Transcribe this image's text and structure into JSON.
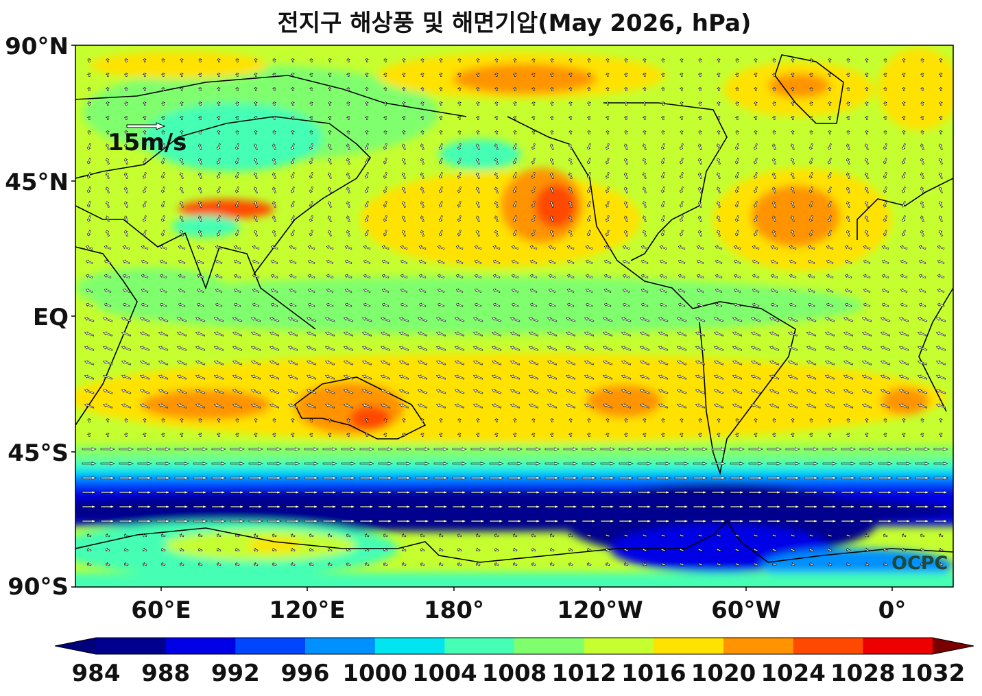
{
  "title": "전지구 해상풍 및 해면기압(May 2026, hPa)",
  "watermark": "OCPC",
  "reference_vector": {
    "label": "15m/s"
  },
  "map": {
    "projection": "equirectangular",
    "central_longitude": "Pacific (left edge 20°E, right edge 20°E)",
    "lat_ticks": [
      "90°N",
      "45°N",
      "EQ",
      "45°S",
      "90°S"
    ],
    "lon_ticks": [
      "60°E",
      "120°E",
      "180°",
      "120°W",
      "60°W",
      "0°"
    ]
  },
  "colorbar": {
    "labels": [
      "984",
      "988",
      "992",
      "996",
      "1000",
      "1004",
      "1008",
      "1012",
      "1016",
      "1020",
      "1024",
      "1028",
      "1032"
    ],
    "colors": [
      "#00008f",
      "#0000e6",
      "#0045ff",
      "#0090ff",
      "#00e5f0",
      "#44ffb4",
      "#80ff6e",
      "#c5ff30",
      "#ffe200",
      "#ff9400",
      "#ff4a00",
      "#ee0000",
      "#8a0000"
    ],
    "under_color": "#00007a",
    "over_color": "#7a0000"
  }
}
